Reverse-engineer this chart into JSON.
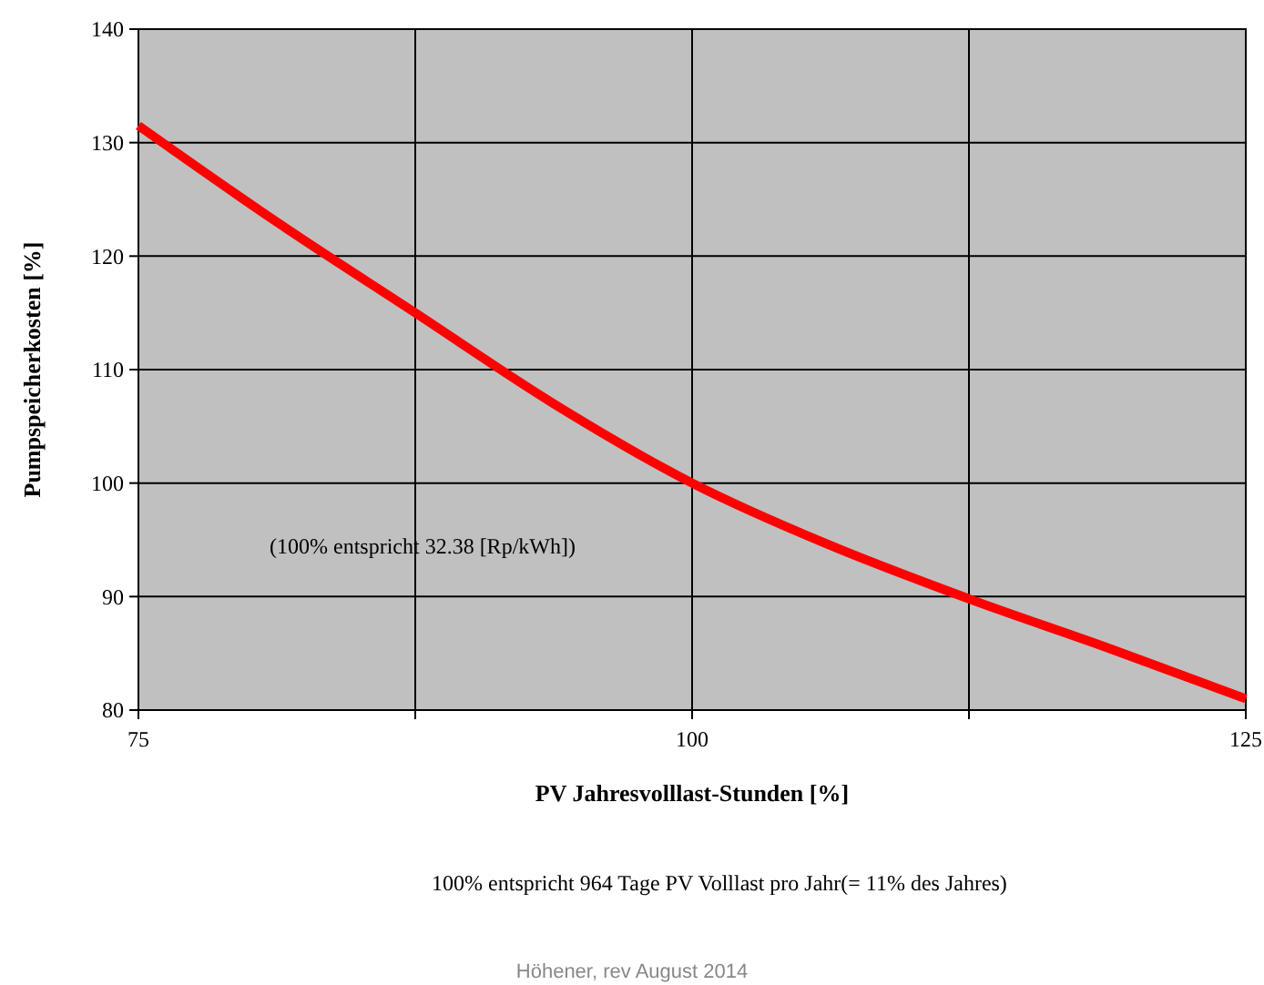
{
  "chart_data": {
    "type": "line",
    "xlabel": "PV Jahresvolllast-Stunden [%]",
    "ylabel": "Pumpspeicherkosten [%]",
    "x": [
      75,
      81.25,
      87.5,
      93.75,
      100,
      106.25,
      112.5,
      118.75,
      125
    ],
    "series": [
      {
        "color": "#ff0000",
        "values": [
          131.5,
          123,
          115,
          107,
          100,
          94.5,
          89.8,
          85.5,
          81
        ]
      }
    ],
    "xlim": [
      75,
      125
    ],
    "xticks": [
      75,
      {
        "value": 87.5,
        "label": null
      },
      100,
      {
        "value": 112.5,
        "label": null
      },
      125
    ],
    "ylim": [
      80,
      140
    ],
    "yticks": [
      80,
      90,
      100,
      110,
      120,
      130,
      140
    ],
    "grid": true,
    "marker": "none",
    "line_style": "solid",
    "annotations": [
      "(100% entspricht 32.38 [Rp/kWh])",
      "100% entspricht 964 Tage PV Volllast pro Jahr(= 11% des Jahres)",
      "Höhener, rev August 2014"
    ]
  }
}
